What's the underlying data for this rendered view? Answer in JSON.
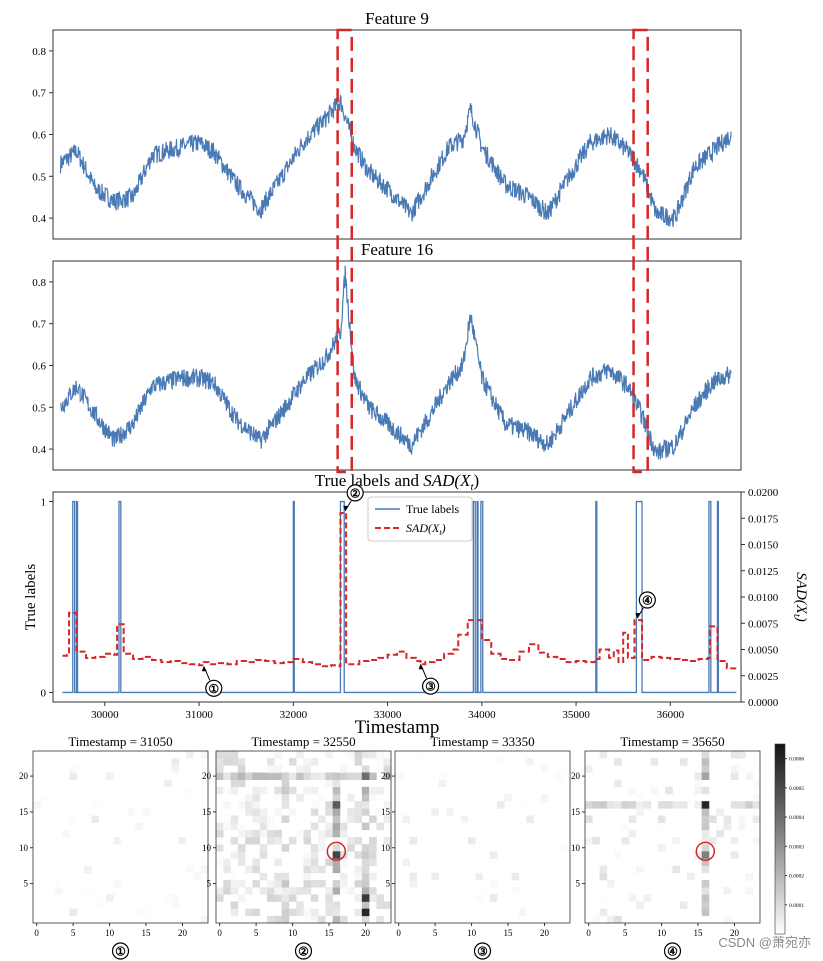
{
  "figure": {
    "watermark": "CSDN @萧宛亦"
  },
  "colors": {
    "series": "#4a7ab5",
    "sad": "#d62728",
    "highlight": "#d62728",
    "axis": "#333333"
  },
  "chart_data": [
    {
      "type": "line",
      "title": "Feature 9",
      "xlim": [
        29450,
        36750
      ],
      "ylim": [
        0.35,
        0.85
      ],
      "yticks": [
        "0.4",
        "0.5",
        "0.6",
        "0.7",
        "0.8"
      ],
      "series": [
        {
          "values_approx": [
            [
              29530,
              0.53
            ],
            [
              29700,
              0.56
            ],
            [
              29900,
              0.47
            ],
            [
              30100,
              0.44
            ],
            [
              30300,
              0.45
            ],
            [
              30500,
              0.55
            ],
            [
              30800,
              0.57
            ],
            [
              31000,
              0.58
            ],
            [
              31150,
              0.56
            ],
            [
              31400,
              0.48
            ],
            [
              31650,
              0.42
            ],
            [
              31850,
              0.49
            ],
            [
              32100,
              0.58
            ],
            [
              32350,
              0.64
            ],
            [
              32500,
              0.68
            ],
            [
              32650,
              0.57
            ],
            [
              32800,
              0.51
            ],
            [
              33000,
              0.47
            ],
            [
              33250,
              0.41
            ],
            [
              33450,
              0.49
            ],
            [
              33650,
              0.57
            ],
            [
              33800,
              0.59
            ],
            [
              33880,
              0.66
            ],
            [
              34000,
              0.57
            ],
            [
              34250,
              0.48
            ],
            [
              34500,
              0.45
            ],
            [
              34700,
              0.41
            ],
            [
              34900,
              0.49
            ],
            [
              35150,
              0.58
            ],
            [
              35350,
              0.6
            ],
            [
              35550,
              0.56
            ],
            [
              35700,
              0.51
            ],
            [
              35850,
              0.41
            ],
            [
              36050,
              0.4
            ],
            [
              36250,
              0.52
            ],
            [
              36450,
              0.56
            ],
            [
              36650,
              0.6
            ]
          ]
        }
      ],
      "highlight_ranges": [
        [
          32470,
          32620
        ],
        [
          35610,
          35760
        ]
      ]
    },
    {
      "type": "line",
      "title": "Feature 16",
      "xlim": [
        29450,
        36750
      ],
      "ylim": [
        0.35,
        0.85
      ],
      "yticks": [
        "0.4",
        "0.5",
        "0.6",
        "0.7",
        "0.8"
      ],
      "series": [
        {
          "values_approx": [
            [
              29530,
              0.5
            ],
            [
              29700,
              0.55
            ],
            [
              29900,
              0.48
            ],
            [
              30100,
              0.42
            ],
            [
              30300,
              0.46
            ],
            [
              30500,
              0.55
            ],
            [
              30800,
              0.57
            ],
            [
              31000,
              0.57
            ],
            [
              31150,
              0.56
            ],
            [
              31400,
              0.47
            ],
            [
              31650,
              0.42
            ],
            [
              31850,
              0.48
            ],
            [
              32100,
              0.56
            ],
            [
              32350,
              0.62
            ],
            [
              32500,
              0.68
            ],
            [
              32550,
              0.82
            ],
            [
              32650,
              0.57
            ],
            [
              32800,
              0.5
            ],
            [
              33000,
              0.46
            ],
            [
              33250,
              0.41
            ],
            [
              33450,
              0.48
            ],
            [
              33650,
              0.56
            ],
            [
              33800,
              0.6
            ],
            [
              33880,
              0.72
            ],
            [
              34000,
              0.57
            ],
            [
              34250,
              0.46
            ],
            [
              34500,
              0.44
            ],
            [
              34700,
              0.41
            ],
            [
              34900,
              0.48
            ],
            [
              35150,
              0.57
            ],
            [
              35350,
              0.59
            ],
            [
              35550,
              0.55
            ],
            [
              35700,
              0.48
            ],
            [
              35850,
              0.39
            ],
            [
              36050,
              0.41
            ],
            [
              36250,
              0.5
            ],
            [
              36450,
              0.56
            ],
            [
              36650,
              0.58
            ]
          ]
        }
      ],
      "highlight_ranges": [
        [
          32470,
          32620
        ],
        [
          35610,
          35760
        ]
      ]
    },
    {
      "type": "line",
      "title": "True labels and SAD(X_t)",
      "title_plain": "True labels and ",
      "title_math": "SAD",
      "title_paren": "(X",
      "title_sub": "t",
      "title_close": ")",
      "xlabel": "Timestamp",
      "ylabel": "True labels",
      "y2label": "SAD(X_t)",
      "xlim": [
        29450,
        36750
      ],
      "xticks": [
        30000,
        31000,
        32000,
        33000,
        34000,
        35000,
        36000
      ],
      "ylim": [
        -0.05,
        1.05
      ],
      "yticks": [
        0,
        1
      ],
      "y2lim": [
        0,
        0.02
      ],
      "y2ticks": [
        "0.0000",
        "0.0025",
        "0.0050",
        "0.0075",
        "0.0100",
        "0.0125",
        "0.0150",
        "0.0175",
        "0.0200"
      ],
      "legend": {
        "placement": "top-center",
        "entries": [
          "True labels",
          "SAD(X_t)"
        ]
      },
      "true_label_spikes": [
        [
          29660,
          29680
        ],
        [
          29700,
          29710
        ],
        [
          30150,
          30170
        ],
        [
          32000,
          32010
        ],
        [
          32500,
          32540
        ],
        [
          33910,
          33930
        ],
        [
          33950,
          33960
        ],
        [
          33990,
          34010
        ],
        [
          35210,
          35220
        ],
        [
          35640,
          35700
        ],
        [
          36410,
          36430
        ],
        [
          36500,
          36510
        ]
      ],
      "sad_steps": [
        [
          29550,
          0.0044
        ],
        [
          29600,
          0.0045
        ],
        [
          29620,
          0.0085
        ],
        [
          29700,
          0.0048
        ],
        [
          29800,
          0.0042
        ],
        [
          29900,
          0.0043
        ],
        [
          30000,
          0.0046
        ],
        [
          30100,
          0.0045
        ],
        [
          30130,
          0.0074
        ],
        [
          30200,
          0.0046
        ],
        [
          30300,
          0.0041
        ],
        [
          30400,
          0.0043
        ],
        [
          30500,
          0.004
        ],
        [
          30600,
          0.0038
        ],
        [
          30700,
          0.0039
        ],
        [
          30800,
          0.0037
        ],
        [
          30900,
          0.0036
        ],
        [
          31000,
          0.0035
        ],
        [
          31050,
          0.0038
        ],
        [
          31100,
          0.0036
        ],
        [
          31200,
          0.0037
        ],
        [
          31300,
          0.0036
        ],
        [
          31400,
          0.0039
        ],
        [
          31500,
          0.0038
        ],
        [
          31600,
          0.004
        ],
        [
          31700,
          0.0039
        ],
        [
          31800,
          0.0037
        ],
        [
          31900,
          0.0038
        ],
        [
          32000,
          0.0041
        ],
        [
          32100,
          0.0038
        ],
        [
          32200,
          0.0036
        ],
        [
          32300,
          0.0034
        ],
        [
          32400,
          0.0035
        ],
        [
          32490,
          0.0034
        ],
        [
          32500,
          0.018
        ],
        [
          32560,
          0.0036
        ],
        [
          32700,
          0.0039
        ],
        [
          32800,
          0.004
        ],
        [
          32900,
          0.0042
        ],
        [
          33000,
          0.0045
        ],
        [
          33100,
          0.0048
        ],
        [
          33200,
          0.0042
        ],
        [
          33300,
          0.0039
        ],
        [
          33350,
          0.0036
        ],
        [
          33400,
          0.0038
        ],
        [
          33500,
          0.004
        ],
        [
          33600,
          0.0046
        ],
        [
          33700,
          0.005
        ],
        [
          33750,
          0.0064
        ],
        [
          33850,
          0.0078
        ],
        [
          34000,
          0.0059
        ],
        [
          34100,
          0.0046
        ],
        [
          34200,
          0.0041
        ],
        [
          34300,
          0.004
        ],
        [
          34400,
          0.0048
        ],
        [
          34500,
          0.0055
        ],
        [
          34600,
          0.0047
        ],
        [
          34700,
          0.0043
        ],
        [
          34800,
          0.0041
        ],
        [
          34900,
          0.0038
        ],
        [
          35000,
          0.0039
        ],
        [
          35100,
          0.0038
        ],
        [
          35200,
          0.0041
        ],
        [
          35250,
          0.005
        ],
        [
          35350,
          0.0042
        ],
        [
          35400,
          0.0049
        ],
        [
          35450,
          0.0038
        ],
        [
          35500,
          0.0066
        ],
        [
          35550,
          0.0042
        ],
        [
          35620,
          0.0078
        ],
        [
          35700,
          0.004
        ],
        [
          35800,
          0.0043
        ],
        [
          35900,
          0.0042
        ],
        [
          36000,
          0.0041
        ],
        [
          36100,
          0.004
        ],
        [
          36200,
          0.0039
        ],
        [
          36300,
          0.0041
        ],
        [
          36400,
          0.0042
        ],
        [
          36420,
          0.0072
        ],
        [
          36500,
          0.0039
        ],
        [
          36600,
          0.0032
        ],
        [
          36700,
          0.0032
        ]
      ],
      "annotations": [
        {
          "label": "①",
          "x": 31050,
          "y": 0.0034,
          "side": "below"
        },
        {
          "label": "②",
          "x": 32550,
          "y": 0.0182,
          "side": "above"
        },
        {
          "label": "③",
          "x": 33350,
          "y": 0.0036,
          "side": "below"
        },
        {
          "label": "④",
          "x": 35650,
          "y": 0.008,
          "side": "above"
        }
      ]
    },
    {
      "type": "heatmap",
      "panels": [
        {
          "title": "Timestamp = 31050",
          "label": "①",
          "highlight": null
        },
        {
          "title": "Timestamp = 32550",
          "label": "②",
          "highlight": [
            16,
            9.5
          ]
        },
        {
          "title": "Timestamp = 33350",
          "label": "③",
          "highlight": null
        },
        {
          "title": "Timestamp = 35650",
          "label": "④",
          "highlight": [
            16,
            9.5
          ]
        }
      ],
      "xlim": [
        0,
        24
      ],
      "ylim": [
        0,
        24
      ],
      "xticks": [
        0,
        5,
        10,
        15,
        20
      ],
      "yticks": [
        5,
        10,
        15,
        20
      ],
      "colorbar": {
        "range": [
          0,
          0.00065
        ],
        "ticks": [
          "0.0001",
          "0.0002",
          "0.0003",
          "0.0004",
          "0.0005",
          "0.0006"
        ]
      }
    }
  ]
}
